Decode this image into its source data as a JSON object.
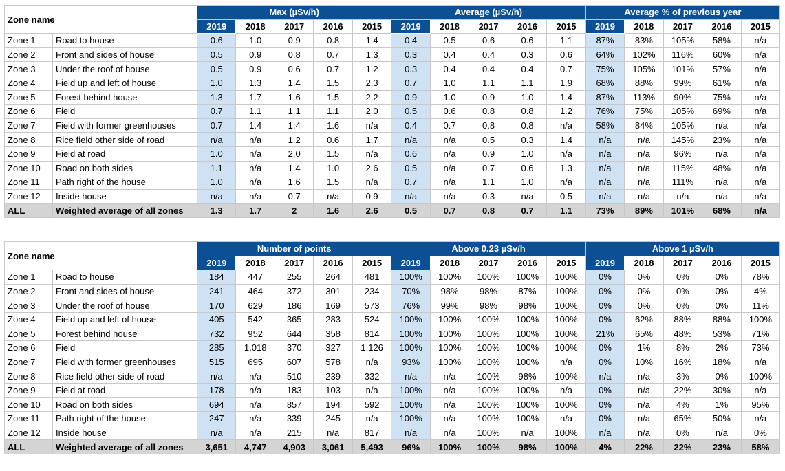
{
  "years": [
    "2019",
    "2018",
    "2017",
    "2016",
    "2015"
  ],
  "tables": [
    {
      "zone_header": "Zone name",
      "groups": [
        "Max (µSv/h)",
        "Average (µSv/h)",
        "Average % of previous year"
      ],
      "rows": [
        {
          "id": "Zone 1",
          "name": "Road to house",
          "cells": [
            "0.6",
            "1.0",
            "0.9",
            "0.8",
            "1.4",
            "0.4",
            "0.5",
            "0.6",
            "0.6",
            "1.1",
            "87%",
            "83%",
            "105%",
            "58%",
            "n/a"
          ]
        },
        {
          "id": "Zone 2",
          "name": "Front and sides of house",
          "cells": [
            "0.5",
            "0.9",
            "0.8",
            "0.7",
            "1.3",
            "0.3",
            "0.4",
            "0.4",
            "0.3",
            "0.6",
            "64%",
            "102%",
            "116%",
            "60%",
            "n/a"
          ]
        },
        {
          "id": "Zone 3",
          "name": "Under the roof of house",
          "cells": [
            "0.5",
            "0.9",
            "0.6",
            "0.7",
            "1.2",
            "0.3",
            "0.4",
            "0.4",
            "0.4",
            "0.7",
            "75%",
            "105%",
            "101%",
            "57%",
            "n/a"
          ]
        },
        {
          "id": "Zone 4",
          "name": "Field up and left of house",
          "cells": [
            "1.0",
            "1.3",
            "1.4",
            "1.5",
            "2.3",
            "0.7",
            "1.0",
            "1.1",
            "1.1",
            "1.9",
            "68%",
            "88%",
            "99%",
            "61%",
            "n/a"
          ]
        },
        {
          "id": "Zone 5",
          "name": "Forest behind house",
          "cells": [
            "1.3",
            "1.7",
            "1.6",
            "1.5",
            "2.2",
            "0.9",
            "1.0",
            "0.9",
            "1.0",
            "1.4",
            "87%",
            "113%",
            "90%",
            "75%",
            "n/a"
          ]
        },
        {
          "id": "Zone 6",
          "name": "Field",
          "cells": [
            "0.7",
            "1.1",
            "1.1",
            "1.1",
            "2.0",
            "0.5",
            "0.6",
            "0.8",
            "0.8",
            "1.2",
            "76%",
            "75%",
            "105%",
            "69%",
            "n/a"
          ]
        },
        {
          "id": "Zone 7",
          "name": "Field with former greenhouses",
          "cells": [
            "0.7",
            "1.4",
            "1.4",
            "1.6",
            "n/a",
            "0.4",
            "0.7",
            "0.8",
            "0.8",
            "n/a",
            "58%",
            "84%",
            "105%",
            "n/a",
            "n/a"
          ]
        },
        {
          "id": "Zone 8",
          "name": "Rice field other side of road",
          "cells": [
            "n/a",
            "n/a",
            "1.2",
            "0.6",
            "1.7",
            "n/a",
            "n/a",
            "0.5",
            "0.3",
            "1.4",
            "n/a",
            "n/a",
            "145%",
            "23%",
            "n/a"
          ]
        },
        {
          "id": "Zone 9",
          "name": "Field at road",
          "cells": [
            "1.0",
            "n/a",
            "2.0",
            "1.5",
            "n/a",
            "0.6",
            "n/a",
            "0.9",
            "1.0",
            "n/a",
            "n/a",
            "n/a",
            "96%",
            "n/a",
            "n/a"
          ]
        },
        {
          "id": "Zone 10",
          "name": "Road on both sides",
          "cells": [
            "1.1",
            "n/a",
            "1.4",
            "1.0",
            "2.6",
            "0.5",
            "n/a",
            "0.7",
            "0.6",
            "1.3",
            "n/a",
            "n/a",
            "115%",
            "48%",
            "n/a"
          ]
        },
        {
          "id": "Zone 11",
          "name": "Path right of the house",
          "cells": [
            "1.0",
            "n/a",
            "1.6",
            "1.5",
            "n/a",
            "0.7",
            "n/a",
            "1.1",
            "1.0",
            "n/a",
            "n/a",
            "n/a",
            "111%",
            "n/a",
            "n/a"
          ]
        },
        {
          "id": "Zone 12",
          "name": "Inside house",
          "cells": [
            "n/a",
            "n/a",
            "0.7",
            "n/a",
            "0.9",
            "n/a",
            "n/a",
            "0.3",
            "n/a",
            "0.5",
            "n/a",
            "n/a",
            "n/a",
            "n/a",
            "n/a"
          ]
        }
      ],
      "all_row": {
        "id": "ALL",
        "name": "Weighted average of all zones",
        "cells": [
          "1.3",
          "1.7",
          "2",
          "1.6",
          "2.6",
          "0.5",
          "0.7",
          "0.8",
          "0.7",
          "1.1",
          "73%",
          "89%",
          "101%",
          "68%",
          "n/a"
        ]
      }
    },
    {
      "zone_header": "Zone name",
      "groups": [
        "Number of points",
        "Above 0.23 µSv/h",
        "Above 1 µSv/h"
      ],
      "rows": [
        {
          "id": "Zone 1",
          "name": "Road to house",
          "cells": [
            "184",
            "447",
            "255",
            "264",
            "481",
            "100%",
            "100%",
            "100%",
            "100%",
            "100%",
            "0%",
            "0%",
            "0%",
            "0%",
            "78%"
          ]
        },
        {
          "id": "Zone 2",
          "name": "Front and sides of house",
          "cells": [
            "241",
            "464",
            "372",
            "301",
            "234",
            "70%",
            "98%",
            "98%",
            "87%",
            "100%",
            "0%",
            "0%",
            "0%",
            "0%",
            "4%"
          ]
        },
        {
          "id": "Zone 3",
          "name": "Under the roof of house",
          "cells": [
            "170",
            "629",
            "186",
            "169",
            "573",
            "76%",
            "99%",
            "98%",
            "98%",
            "100%",
            "0%",
            "0%",
            "0%",
            "0%",
            "11%"
          ]
        },
        {
          "id": "Zone 4",
          "name": "Field up and left of house",
          "cells": [
            "405",
            "542",
            "365",
            "283",
            "524",
            "100%",
            "100%",
            "100%",
            "100%",
            "100%",
            "0%",
            "62%",
            "88%",
            "88%",
            "100%"
          ]
        },
        {
          "id": "Zone 5",
          "name": "Forest behind house",
          "cells": [
            "732",
            "952",
            "644",
            "358",
            "814",
            "100%",
            "100%",
            "100%",
            "100%",
            "100%",
            "21%",
            "65%",
            "48%",
            "53%",
            "71%"
          ]
        },
        {
          "id": "Zone 6",
          "name": "Field",
          "cells": [
            "285",
            "1,018",
            "370",
            "327",
            "1,126",
            "100%",
            "100%",
            "100%",
            "100%",
            "100%",
            "0%",
            "1%",
            "8%",
            "2%",
            "73%"
          ]
        },
        {
          "id": "Zone 7",
          "name": "Field with former greenhouses",
          "cells": [
            "515",
            "695",
            "607",
            "578",
            "n/a",
            "93%",
            "100%",
            "100%",
            "100%",
            "n/a",
            "0%",
            "10%",
            "16%",
            "18%",
            "n/a"
          ]
        },
        {
          "id": "Zone 8",
          "name": "Rice field other side of road",
          "cells": [
            "n/a",
            "n/a",
            "510",
            "239",
            "332",
            "n/a",
            "n/a",
            "100%",
            "98%",
            "100%",
            "n/a",
            "n/a",
            "3%",
            "0%",
            "100%"
          ]
        },
        {
          "id": "Zone 9",
          "name": "Field at road",
          "cells": [
            "178",
            "n/a",
            "183",
            "103",
            "n/a",
            "100%",
            "n/a",
            "100%",
            "100%",
            "n/a",
            "0%",
            "n/a",
            "22%",
            "30%",
            "n/a"
          ]
        },
        {
          "id": "Zone 10",
          "name": "Road on both sides",
          "cells": [
            "694",
            "n/a",
            "857",
            "194",
            "592",
            "100%",
            "n/a",
            "100%",
            "100%",
            "100%",
            "0%",
            "n/a",
            "4%",
            "1%",
            "95%"
          ]
        },
        {
          "id": "Zone 11",
          "name": "Path right of the house",
          "cells": [
            "247",
            "n/a",
            "339",
            "245",
            "n/a",
            "100%",
            "n/a",
            "100%",
            "100%",
            "n/a",
            "0%",
            "n/a",
            "65%",
            "50%",
            "n/a"
          ]
        },
        {
          "id": "Zone 12",
          "name": "Inside house",
          "cells": [
            "n/a",
            "n/a",
            "215",
            "n/a",
            "817",
            "n/a",
            "n/a",
            "100%",
            "n/a",
            "100%",
            "n/a",
            "n/a",
            "0%",
            "n/a",
            "0%"
          ]
        }
      ],
      "all_row": {
        "id": "ALL",
        "name": "Weighted average of all zones",
        "cells": [
          "3,651",
          "4,747",
          "4,903",
          "3,061",
          "5,493",
          "96%",
          "100%",
          "100%",
          "98%",
          "100%",
          "4%",
          "22%",
          "22%",
          "23%",
          "58%"
        ]
      }
    }
  ],
  "colors": {
    "header_blue": "#0b4f95",
    "current_year_fill": "#cfe2f3",
    "all_row_fill": "#d4d4d4",
    "grid_line": "#c8c8c8"
  }
}
